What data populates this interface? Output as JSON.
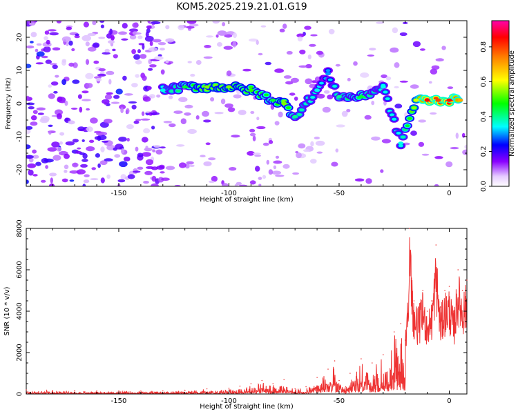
{
  "figure": {
    "title": "KOM5.2025.219.21.01.G19",
    "colors": {
      "series_line": "#ee3333",
      "frame": "#000000",
      "background": "#ffffff"
    }
  },
  "chart_data": [
    {
      "type": "heatmap",
      "title": "KOM5.2025.219.21.01.G19",
      "xlabel": "Height of straight line (km)",
      "ylabel": "Frequency (Hz)",
      "xlim": [
        -192,
        8
      ],
      "ylim": [
        -25,
        25
      ],
      "xticks": [
        -150,
        -100,
        -50,
        0
      ],
      "xtick_labels": [
        "-150",
        "-100",
        "-50",
        "0"
      ],
      "yticks": [
        -20,
        -10,
        0,
        10,
        20
      ],
      "ytick_labels": [
        "-20",
        "-10",
        "0",
        "10",
        "20"
      ],
      "colorbar": {
        "label": "Normalized spectral amplitude",
        "range": [
          0,
          0.95
        ],
        "ticks": [
          0.0,
          0.2,
          0.4,
          0.6,
          0.8
        ],
        "tick_labels": [
          "0.0",
          "0.2",
          "0.4",
          "0.6",
          "0.8"
        ]
      },
      "ridge": [
        {
          "x": -130,
          "y": 4,
          "amp": 0.35
        },
        {
          "x": -120,
          "y": 5,
          "amp": 0.45
        },
        {
          "x": -110,
          "y": 5,
          "amp": 0.55
        },
        {
          "x": -100,
          "y": 5,
          "amp": 0.55
        },
        {
          "x": -90,
          "y": 4,
          "amp": 0.5
        },
        {
          "x": -80,
          "y": 1,
          "amp": 0.45
        },
        {
          "x": -75,
          "y": 0,
          "amp": 0.55
        },
        {
          "x": -70,
          "y": -4,
          "amp": 0.4
        },
        {
          "x": -60,
          "y": 4,
          "amp": 0.35
        },
        {
          "x": -55,
          "y": 9,
          "amp": 0.3
        },
        {
          "x": -50,
          "y": 2,
          "amp": 0.4
        },
        {
          "x": -40,
          "y": 2,
          "amp": 0.45
        },
        {
          "x": -30,
          "y": 5,
          "amp": 0.35
        },
        {
          "x": -22,
          "y": -12,
          "amp": 0.35
        },
        {
          "x": -15,
          "y": 1,
          "amp": 0.6
        },
        {
          "x": -10,
          "y": 1,
          "amp": 0.85
        },
        {
          "x": -5,
          "y": 1,
          "amp": 0.8
        },
        {
          "x": 0,
          "y": 1,
          "amp": 0.85
        },
        {
          "x": 5,
          "y": 1,
          "amp": 0.7
        }
      ]
    },
    {
      "type": "line",
      "xlabel": "Height of straight line (km)",
      "ylabel": "SNR (10 * v/v)",
      "xlim": [
        -192,
        8
      ],
      "ylim": [
        0,
        8000
      ],
      "xticks": [
        -150,
        -100,
        -50,
        0
      ],
      "xtick_labels": [
        "-150",
        "-100",
        "-50",
        "0"
      ],
      "yticks": [
        0,
        2000,
        4000,
        6000,
        8000
      ],
      "ytick_labels": [
        "0",
        "2000",
        "4000",
        "6000",
        "8000"
      ],
      "series": [
        {
          "name": "SNR",
          "x": [
            -192,
            -180,
            -170,
            -160,
            -150,
            -140,
            -130,
            -120,
            -110,
            -100,
            -95,
            -90,
            -85,
            -80,
            -75,
            -70,
            -65,
            -60,
            -55,
            -52,
            -50,
            -47,
            -45,
            -40,
            -35,
            -30,
            -25,
            -22,
            -20,
            -18,
            -16,
            -14,
            -12,
            -10,
            -8,
            -6,
            -4,
            -2,
            0,
            2,
            4,
            6,
            8
          ],
          "y": [
            200,
            170,
            160,
            150,
            140,
            140,
            150,
            180,
            250,
            280,
            380,
            500,
            650,
            500,
            700,
            250,
            350,
            800,
            1200,
            1600,
            650,
            350,
            1000,
            1700,
            1500,
            1900,
            3000,
            3400,
            2600,
            8000,
            4500,
            4200,
            5000,
            4000,
            4500,
            7200,
            4200,
            5000,
            5200,
            4000,
            6000,
            5000,
            5500
          ]
        }
      ]
    }
  ]
}
